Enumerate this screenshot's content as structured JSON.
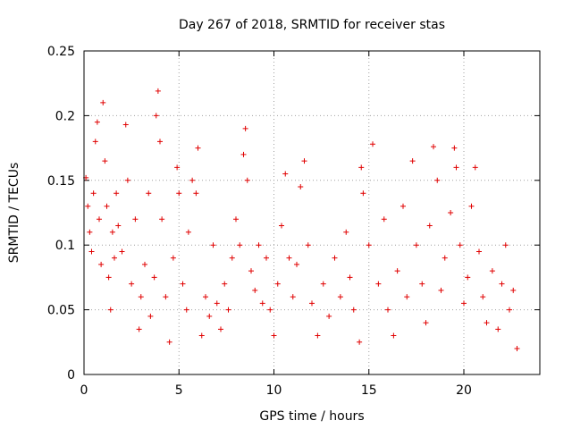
{
  "chart_data": {
    "type": "scatter",
    "title": "Day 267 of 2018, SRMTID for receiver stas",
    "xlabel": "GPS time / hours",
    "ylabel": "SRMTID / TECUs",
    "xlim": [
      0,
      24
    ],
    "ylim": [
      0,
      0.25
    ],
    "x_ticks": [
      0,
      5,
      10,
      15,
      20
    ],
    "x_tick_labels": [
      "0",
      "5",
      "10",
      "15",
      "20"
    ],
    "y_ticks": [
      0,
      0.05,
      0.1,
      0.15,
      0.2,
      0.25
    ],
    "y_tick_labels": [
      "0",
      "0.05",
      "0.1",
      "0.15",
      "0.2",
      "0.25"
    ],
    "grid": true,
    "marker": "+",
    "color": "#e00000",
    "data_x_range_hours": [
      0,
      22.9
    ],
    "series": [
      {
        "name": "SRMTID",
        "points": [
          [
            0.1,
            0.152
          ],
          [
            0.2,
            0.13
          ],
          [
            0.3,
            0.11
          ],
          [
            0.4,
            0.095
          ],
          [
            0.5,
            0.14
          ],
          [
            0.6,
            0.18
          ],
          [
            0.7,
            0.195
          ],
          [
            0.8,
            0.12
          ],
          [
            0.9,
            0.085
          ],
          [
            1.0,
            0.21
          ],
          [
            1.1,
            0.165
          ],
          [
            1.2,
            0.13
          ],
          [
            1.3,
            0.075
          ],
          [
            1.4,
            0.05
          ],
          [
            1.5,
            0.11
          ],
          [
            1.6,
            0.09
          ],
          [
            1.7,
            0.14
          ],
          [
            1.8,
            0.115
          ],
          [
            2.0,
            0.095
          ],
          [
            2.2,
            0.193
          ],
          [
            2.3,
            0.15
          ],
          [
            2.5,
            0.07
          ],
          [
            2.7,
            0.12
          ],
          [
            2.9,
            0.035
          ],
          [
            3.0,
            0.06
          ],
          [
            3.2,
            0.085
          ],
          [
            3.4,
            0.14
          ],
          [
            3.5,
            0.045
          ],
          [
            3.7,
            0.075
          ],
          [
            3.8,
            0.2
          ],
          [
            3.9,
            0.219
          ],
          [
            4.0,
            0.18
          ],
          [
            4.1,
            0.12
          ],
          [
            4.3,
            0.06
          ],
          [
            4.5,
            0.025
          ],
          [
            4.7,
            0.09
          ],
          [
            4.9,
            0.16
          ],
          [
            5.0,
            0.14
          ],
          [
            5.2,
            0.07
          ],
          [
            5.4,
            0.05
          ],
          [
            5.5,
            0.11
          ],
          [
            5.7,
            0.15
          ],
          [
            5.9,
            0.14
          ],
          [
            6.0,
            0.175
          ],
          [
            6.2,
            0.03
          ],
          [
            6.4,
            0.06
          ],
          [
            6.6,
            0.045
          ],
          [
            6.8,
            0.1
          ],
          [
            7.0,
            0.055
          ],
          [
            7.2,
            0.035
          ],
          [
            7.4,
            0.07
          ],
          [
            7.6,
            0.05
          ],
          [
            7.8,
            0.09
          ],
          [
            8.0,
            0.12
          ],
          [
            8.2,
            0.1
          ],
          [
            8.4,
            0.17
          ],
          [
            8.5,
            0.19
          ],
          [
            8.6,
            0.15
          ],
          [
            8.8,
            0.08
          ],
          [
            9.0,
            0.065
          ],
          [
            9.2,
            0.1
          ],
          [
            9.4,
            0.055
          ],
          [
            9.6,
            0.09
          ],
          [
            9.8,
            0.05
          ],
          [
            10.0,
            0.03
          ],
          [
            10.2,
            0.07
          ],
          [
            10.4,
            0.115
          ],
          [
            10.6,
            0.155
          ],
          [
            10.8,
            0.09
          ],
          [
            11.0,
            0.06
          ],
          [
            11.2,
            0.085
          ],
          [
            11.4,
            0.145
          ],
          [
            11.6,
            0.165
          ],
          [
            11.8,
            0.1
          ],
          [
            12.0,
            0.055
          ],
          [
            12.3,
            0.03
          ],
          [
            12.6,
            0.07
          ],
          [
            12.9,
            0.045
          ],
          [
            13.2,
            0.09
          ],
          [
            13.5,
            0.06
          ],
          [
            13.8,
            0.11
          ],
          [
            14.0,
            0.075
          ],
          [
            14.2,
            0.05
          ],
          [
            14.5,
            0.025
          ],
          [
            14.6,
            0.16
          ],
          [
            14.7,
            0.14
          ],
          [
            15.0,
            0.1
          ],
          [
            15.2,
            0.178
          ],
          [
            15.5,
            0.07
          ],
          [
            15.8,
            0.12
          ],
          [
            16.0,
            0.05
          ],
          [
            16.3,
            0.03
          ],
          [
            16.5,
            0.08
          ],
          [
            16.8,
            0.13
          ],
          [
            17.0,
            0.06
          ],
          [
            17.3,
            0.165
          ],
          [
            17.5,
            0.1
          ],
          [
            17.8,
            0.07
          ],
          [
            18.0,
            0.04
          ],
          [
            18.2,
            0.115
          ],
          [
            18.4,
            0.176
          ],
          [
            18.6,
            0.15
          ],
          [
            18.8,
            0.065
          ],
          [
            19.0,
            0.09
          ],
          [
            19.3,
            0.125
          ],
          [
            19.5,
            0.175
          ],
          [
            19.6,
            0.16
          ],
          [
            19.8,
            0.1
          ],
          [
            20.0,
            0.055
          ],
          [
            20.2,
            0.075
          ],
          [
            20.4,
            0.13
          ],
          [
            20.6,
            0.16
          ],
          [
            20.8,
            0.095
          ],
          [
            21.0,
            0.06
          ],
          [
            21.2,
            0.04
          ],
          [
            21.5,
            0.08
          ],
          [
            21.8,
            0.035
          ],
          [
            22.0,
            0.07
          ],
          [
            22.2,
            0.1
          ],
          [
            22.4,
            0.05
          ],
          [
            22.6,
            0.065
          ],
          [
            22.8,
            0.02
          ]
        ]
      }
    ]
  }
}
